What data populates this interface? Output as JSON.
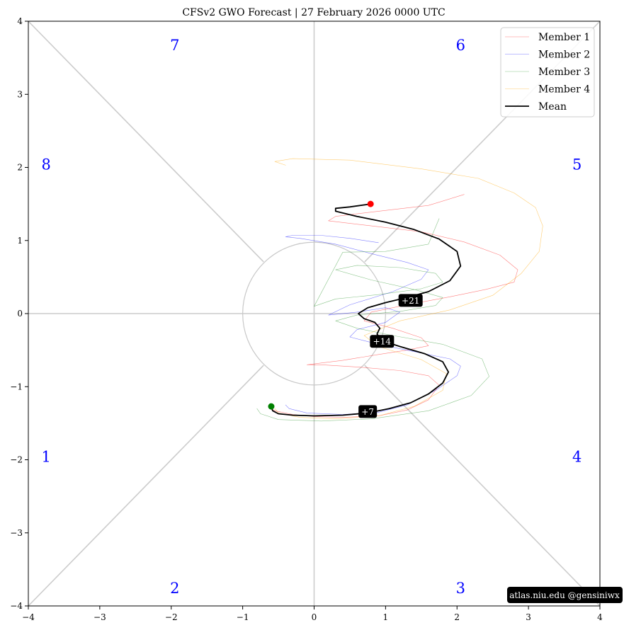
{
  "chart_data": {
    "type": "line",
    "title": "CFSv2 GWO Forecast   |   27  February  2026 0000 UTC",
    "xlabel": "",
    "ylabel": "",
    "xlim": [
      -4,
      4
    ],
    "ylim": [
      -4,
      4
    ],
    "xticks": [
      -4,
      -3,
      -2,
      -1,
      0,
      1,
      2,
      3,
      4
    ],
    "yticks": [
      -4,
      -3,
      -2,
      -1,
      0,
      1,
      2,
      3,
      4
    ],
    "xtick_labels": [
      "−4",
      "−3",
      "−2",
      "−1",
      "0",
      "1",
      "2",
      "3",
      "4"
    ],
    "ytick_labels": [
      "−4",
      "−3",
      "−2",
      "−1",
      "0",
      "1",
      "2",
      "3",
      "4"
    ],
    "grid": false,
    "unit_circle_radius": 1,
    "phases": [
      {
        "label": "1",
        "x": -3.75,
        "y": -1.95
      },
      {
        "label": "2",
        "x": -1.95,
        "y": -3.75
      },
      {
        "label": "3",
        "x": 2.05,
        "y": -3.75
      },
      {
        "label": "4",
        "x": 3.68,
        "y": -1.95
      },
      {
        "label": "5",
        "x": 3.68,
        "y": 2.05
      },
      {
        "label": "6",
        "x": 2.05,
        "y": 3.68
      },
      {
        "label": "7",
        "x": -1.95,
        "y": 3.68
      },
      {
        "label": "8",
        "x": -3.75,
        "y": 2.05
      }
    ],
    "phase_label_color": "#0000ff",
    "legend_position": "top-right",
    "series": [
      {
        "name": "Member 1",
        "color": "#ff0000",
        "width": 0.6,
        "opacity": 0.5,
        "x": [
          -0.6,
          -0.55,
          -0.3,
          0.0,
          0.4,
          0.9,
          1.3,
          1.6,
          1.75,
          1.6,
          1.2,
          0.6,
          0.1,
          -0.1,
          0.4,
          0.9,
          1.3,
          1.6,
          1.5,
          1.1,
          0.7,
          0.8,
          1.3,
          1.9,
          2.4,
          2.8,
          2.85,
          2.6,
          2.1,
          1.5,
          0.8,
          0.2,
          0.3,
          0.9,
          1.6,
          2.1
        ],
        "y": [
          -1.3,
          -1.33,
          -1.38,
          -1.41,
          -1.42,
          -1.4,
          -1.32,
          -1.18,
          -0.98,
          -0.85,
          -0.78,
          -0.73,
          -0.7,
          -0.7,
          -0.64,
          -0.56,
          -0.5,
          -0.44,
          -0.33,
          -0.2,
          -0.1,
          0.02,
          0.12,
          0.23,
          0.33,
          0.43,
          0.6,
          0.8,
          0.98,
          1.12,
          1.2,
          1.27,
          1.33,
          1.4,
          1.48,
          1.63
        ]
      },
      {
        "name": "Member 2",
        "color": "#0000ff",
        "width": 0.6,
        "opacity": 0.5,
        "x": [
          -0.4,
          -0.35,
          -0.1,
          0.4,
          0.9,
          1.3,
          1.7,
          2.0,
          2.05,
          1.9,
          1.4,
          0.9,
          0.5,
          0.6,
          1.0,
          1.2,
          1.0,
          0.6,
          0.2,
          0.5,
          1.1,
          1.5,
          1.6,
          1.3,
          0.8,
          0.3,
          -0.2,
          -0.4,
          -0.3,
          0.1,
          0.5,
          0.9
        ],
        "y": [
          -1.25,
          -1.3,
          -1.36,
          -1.38,
          -1.35,
          -1.25,
          -1.05,
          -0.85,
          -0.72,
          -0.62,
          -0.52,
          -0.42,
          -0.32,
          -0.22,
          -0.12,
          0.02,
          0.08,
          0.02,
          -0.02,
          0.12,
          0.3,
          0.47,
          0.6,
          0.7,
          0.82,
          0.95,
          1.03,
          1.05,
          1.07,
          1.07,
          1.03,
          0.97
        ]
      },
      {
        "name": "Member 3",
        "color": "#008000",
        "width": 0.6,
        "opacity": 0.45,
        "x": [
          -0.8,
          -0.75,
          -0.5,
          0.1,
          0.8,
          1.6,
          2.2,
          2.45,
          2.35,
          1.8,
          1.1,
          0.6,
          0.3,
          0.6,
          1.2,
          1.7,
          1.8,
          1.4,
          0.8,
          0.3,
          0.6,
          1.2,
          1.7,
          1.8,
          1.5,
          0.9,
          0.3,
          0.0,
          0.4,
          1.0,
          1.6,
          1.75
        ],
        "y": [
          -1.3,
          -1.37,
          -1.45,
          -1.47,
          -1.44,
          -1.33,
          -1.12,
          -0.86,
          -0.62,
          -0.42,
          -0.3,
          -0.2,
          -0.1,
          -0.02,
          0.03,
          0.11,
          0.22,
          0.33,
          0.46,
          0.6,
          0.66,
          0.63,
          0.55,
          0.43,
          0.34,
          0.26,
          0.2,
          0.1,
          0.84,
          0.85,
          0.95,
          1.3
        ]
      },
      {
        "name": "Member 4",
        "color": "#ffa500",
        "width": 0.6,
        "opacity": 0.55,
        "x": [
          -0.55,
          -0.5,
          -0.2,
          0.3,
          0.9,
          1.4,
          1.8,
          1.85,
          1.5,
          0.9,
          0.7,
          1.2,
          1.9,
          2.5,
          2.9,
          3.15,
          3.2,
          3.1,
          2.8,
          2.3,
          1.5,
          0.5,
          -0.3,
          -0.55,
          -0.4
        ],
        "y": [
          -1.3,
          -1.36,
          -1.42,
          -1.44,
          -1.4,
          -1.27,
          -1.05,
          -0.82,
          -0.63,
          -0.45,
          -0.3,
          -0.1,
          0.05,
          0.25,
          0.55,
          0.85,
          1.2,
          1.45,
          1.65,
          1.85,
          1.98,
          2.1,
          2.12,
          2.08,
          2.03
        ]
      },
      {
        "name": "Mean",
        "color": "#000000",
        "width": 1.8,
        "opacity": 1,
        "x": [
          -0.6,
          -0.58,
          -0.5,
          -0.3,
          0.0,
          0.4,
          0.75,
          1.05,
          1.35,
          1.6,
          1.8,
          1.88,
          1.8,
          1.55,
          1.2,
          0.95,
          0.88,
          0.92,
          0.85,
          0.7,
          0.62,
          0.75,
          1.0,
          1.3,
          1.6,
          1.9,
          2.05,
          2.0,
          1.75,
          1.4,
          1.0,
          0.6,
          0.3,
          0.3,
          0.5,
          0.8
        ],
        "y": [
          -1.28,
          -1.33,
          -1.37,
          -1.39,
          -1.4,
          -1.39,
          -1.36,
          -1.3,
          -1.22,
          -1.1,
          -0.95,
          -0.8,
          -0.66,
          -0.55,
          -0.45,
          -0.37,
          -0.28,
          -0.2,
          -0.12,
          -0.07,
          0.0,
          0.08,
          0.15,
          0.22,
          0.3,
          0.45,
          0.65,
          0.85,
          1.02,
          1.15,
          1.25,
          1.33,
          1.4,
          1.44,
          1.46,
          1.5
        ]
      }
    ],
    "start_marker": {
      "x": -0.6,
      "y": -1.27,
      "color": "#008000"
    },
    "end_marker": {
      "x": 0.79,
      "y": 1.5,
      "color": "#ff0000"
    },
    "day_labels": [
      {
        "text": "+7",
        "x": 0.75,
        "y": -1.34
      },
      {
        "text": "+14",
        "x": 0.95,
        "y": -0.38
      },
      {
        "text": "+21",
        "x": 1.35,
        "y": 0.18
      }
    ],
    "watermark": "atlas.niu.edu  @gensiniwx"
  }
}
